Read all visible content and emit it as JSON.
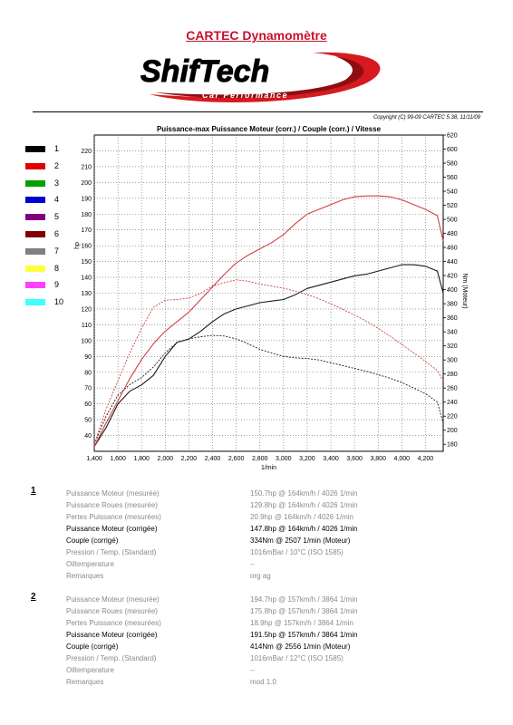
{
  "header": {
    "title": "CARTEC Dynamomètre",
    "logo_main": "ShifTech",
    "logo_sub": "Car Performance",
    "copyright": "Copyright (C) 99-09 CARTEC 5.38, 11/11/09"
  },
  "colors": {
    "title_red": "#c8102e",
    "run1": "#1a1a1a",
    "run2": "#d04040"
  },
  "legend": [
    {
      "label": "1",
      "color": "#000000"
    },
    {
      "label": "2",
      "color": "#e00000"
    },
    {
      "label": "3",
      "color": "#00a000"
    },
    {
      "label": "4",
      "color": "#0000d0"
    },
    {
      "label": "5",
      "color": "#800080"
    },
    {
      "label": "6",
      "color": "#800000"
    },
    {
      "label": "7",
      "color": "#808080"
    },
    {
      "label": "8",
      "color": "#ffff40"
    },
    {
      "label": "9",
      "color": "#ff40ff"
    },
    {
      "label": "10",
      "color": "#40ffff"
    }
  ],
  "chart_data": {
    "type": "line",
    "title": "Puissance-max Puissance Moteur (corr.) / Couple (corr.) / Vitesse",
    "xlabel": "1/min",
    "ylabel": "hp",
    "y2label": "Nm (Moteur)",
    "xlim": [
      1400,
      4350
    ],
    "ylim": [
      30,
      230
    ],
    "y2lim": [
      170,
      620
    ],
    "xticks": [
      1400,
      1600,
      1800,
      2000,
      2200,
      2400,
      2600,
      2800,
      3000,
      3200,
      3400,
      3600,
      3800,
      4000,
      4200
    ],
    "xtick_labels": [
      "1,400",
      "1,600",
      "1,800",
      "2,000",
      "2,200",
      "2,400",
      "2,600",
      "2,800",
      "3,000",
      "3,200",
      "3,400",
      "3,600",
      "3,800",
      "4,000",
      "4,200"
    ],
    "yticks": [
      40,
      50,
      60,
      70,
      80,
      90,
      100,
      110,
      120,
      130,
      140,
      150,
      160,
      170,
      180,
      190,
      200,
      210,
      220
    ],
    "y2ticks": [
      180,
      200,
      220,
      240,
      260,
      280,
      300,
      320,
      340,
      360,
      380,
      400,
      420,
      440,
      460,
      480,
      500,
      520,
      540,
      560,
      580,
      600,
      620
    ],
    "grid": true,
    "series": [
      {
        "name": "1",
        "axis": "left",
        "style": "solid",
        "color": "#1a1a1a",
        "x": [
          1400,
          1500,
          1600,
          1700,
          1800,
          1900,
          2000,
          2100,
          2200,
          2300,
          2400,
          2500,
          2600,
          2700,
          2800,
          2900,
          3000,
          3100,
          3200,
          3300,
          3400,
          3500,
          3600,
          3700,
          3800,
          3900,
          4000,
          4100,
          4200,
          4300,
          4350
        ],
        "y": [
          33,
          45,
          60,
          68,
          72,
          78,
          90,
          99,
          101,
          106,
          112,
          117,
          120,
          122,
          124,
          125,
          126,
          129,
          133,
          135,
          137,
          139,
          141,
          142,
          144,
          146,
          148,
          148,
          147,
          144,
          130
        ]
      },
      {
        "name": "1",
        "axis": "right",
        "style": "dashed",
        "color": "#1a1a1a",
        "x": [
          1400,
          1500,
          1600,
          1700,
          1800,
          1900,
          2000,
          2100,
          2200,
          2300,
          2400,
          2500,
          2600,
          2700,
          2800,
          2900,
          3000,
          3100,
          3200,
          3300,
          3400,
          3500,
          3600,
          3700,
          3800,
          3900,
          4000,
          4100,
          4200,
          4300,
          4350
        ],
        "y": [
          180,
          220,
          250,
          265,
          275,
          290,
          310,
          325,
          330,
          333,
          335,
          334,
          330,
          323,
          315,
          310,
          305,
          303,
          302,
          300,
          296,
          292,
          288,
          284,
          279,
          274,
          268,
          260,
          252,
          240,
          210
        ]
      },
      {
        "name": "2",
        "axis": "left",
        "style": "solid",
        "color": "#d04040",
        "x": [
          1400,
          1500,
          1600,
          1700,
          1800,
          1900,
          2000,
          2100,
          2200,
          2300,
          2400,
          2500,
          2600,
          2700,
          2800,
          2900,
          3000,
          3100,
          3200,
          3300,
          3400,
          3500,
          3600,
          3700,
          3800,
          3900,
          4000,
          4100,
          4200,
          4300,
          4350
        ],
        "y": [
          33,
          48,
          62,
          76,
          88,
          98,
          106,
          112,
          118,
          126,
          134,
          142,
          149,
          154,
          158,
          162,
          167,
          174,
          180,
          183,
          186,
          189,
          191,
          191.5,
          191.5,
          191,
          189,
          186,
          183,
          179,
          163
        ]
      },
      {
        "name": "2",
        "axis": "right",
        "style": "dashed",
        "color": "#d04040",
        "x": [
          1400,
          1500,
          1600,
          1700,
          1800,
          1900,
          2000,
          2100,
          2200,
          2300,
          2400,
          2500,
          2600,
          2700,
          2800,
          2900,
          3000,
          3100,
          3200,
          3300,
          3400,
          3500,
          3600,
          3700,
          3800,
          3900,
          4000,
          4100,
          4200,
          4300,
          4350
        ],
        "y": [
          180,
          230,
          270,
          310,
          345,
          375,
          385,
          386,
          388,
          395,
          405,
          410,
          414,
          412,
          408,
          405,
          402,
          398,
          393,
          387,
          380,
          372,
          364,
          355,
          345,
          334,
          322,
          310,
          298,
          285,
          270
        ]
      }
    ]
  },
  "runs": [
    {
      "number": "1",
      "rows": [
        {
          "label": "Puissance Moteur (mesurée)",
          "value": "150.7hp @ 164km/h / 4026 1/min",
          "style": "dim"
        },
        {
          "label": "Puissance Roues (mesurée)",
          "value": "129.8hp @ 164km/h / 4026 1/min",
          "style": "dim"
        },
        {
          "label": "Pertes Puissance (mesurées)",
          "value": "20.9hp @ 164km/h / 4026 1/min",
          "style": "dim"
        },
        {
          "label": "Puissance Moteur (corrigée)",
          "value": "147.8hp @ 164km/h / 4026 1/min",
          "style": "bold"
        },
        {
          "label": "Couple (corrigé)",
          "value": "334Nm @ 2507 1/min (Moteur)",
          "style": "bold"
        },
        {
          "label": "Pression / Temp. (Standard)",
          "value": "1016mBar / 10°C    (ISO 1585)",
          "style": "dim"
        },
        {
          "label": "Oiltemperature",
          "value": "--",
          "style": "dim"
        },
        {
          "label": "Remarques",
          "value": "org ag",
          "style": "dim"
        }
      ]
    },
    {
      "number": "2",
      "rows": [
        {
          "label": "Puissance Moteur (mesurée)",
          "value": "194.7hp @ 157km/h / 3864 1/min",
          "style": "dim"
        },
        {
          "label": "Puissance Roues (mesurée)",
          "value": "175.8hp @ 157km/h / 3864 1/min",
          "style": "dim"
        },
        {
          "label": "Pertes Puissance (mesurées)",
          "value": "18.9hp @ 157km/h / 3864 1/min",
          "style": "dim"
        },
        {
          "label": "Puissance Moteur (corrigée)",
          "value": "191.5hp @ 157km/h / 3864 1/min",
          "style": "bold"
        },
        {
          "label": "Couple (corrigé)",
          "value": "414Nm @ 2556 1/min (Moteur)",
          "style": "bold"
        },
        {
          "label": "Pression / Temp. (Standard)",
          "value": "1016mBar / 12°C    (ISO 1585)",
          "style": "dim"
        },
        {
          "label": "Oiltemperature",
          "value": "--",
          "style": "dim"
        },
        {
          "label": "Remarques",
          "value": "mod 1.0",
          "style": "dim"
        }
      ]
    }
  ]
}
